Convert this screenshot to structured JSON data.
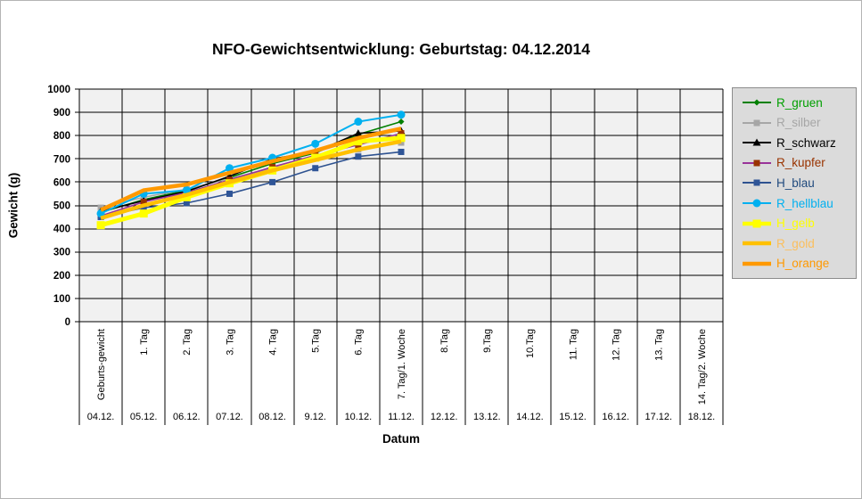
{
  "title": "NFO-Gewichtsentwicklung: Geburtstag: 04.12.2014",
  "palette": {
    "plot_background": "#f1f1f1",
    "grid_color": "#000000",
    "legend_background": "#dbdbdb",
    "legend_border": "#8c8c8c",
    "outer_border": "#b4b4b4"
  },
  "chart_data": {
    "type": "line",
    "title": "NFO-Gewichtsentwicklung: Geburtstag: 04.12.2014",
    "xlabel": "Datum",
    "ylabel": "Gewicht (g)",
    "ylim": [
      0,
      1000
    ],
    "yticks": [
      0,
      100,
      200,
      300,
      400,
      500,
      600,
      700,
      800,
      900,
      1000
    ],
    "grid": true,
    "legend_position": "right",
    "categories": [
      "Geburts-gewicht",
      "1. Tag",
      "2. Tag",
      "3. Tag",
      "4. Tag",
      "5.Tag",
      "6. Tag",
      "7. Tag/1. Woche",
      "8.Tag",
      "9.Tag",
      "10.Tag",
      "11. Tag",
      "12. Tag",
      "13. Tag",
      "14. Tag/2. Woche"
    ],
    "category_dates": [
      "04.12.",
      "05.12.",
      "06.12.",
      "07.12.",
      "08.12.",
      "9.12.",
      "10.12.",
      "11.12.",
      "12.12.",
      "13.12.",
      "14.12.",
      "15.12.",
      "16.12.",
      "17.12.",
      "18.12."
    ],
    "series": [
      {
        "name": "R_gruen",
        "color": "#008000",
        "text_color": "#00A000",
        "marker": "diamond",
        "line_width": 1.6,
        "values": [
          470,
          525,
          565,
          620,
          680,
          725,
          805,
          860
        ]
      },
      {
        "name": "R_silber",
        "color": "#A6A6A6",
        "text_color": "#A6A6A6",
        "marker": "square",
        "line_width": 1.6,
        "values": [
          490,
          535,
          570,
          615,
          660,
          705,
          740,
          770
        ]
      },
      {
        "name": "R_schwarz",
        "color": "#000000",
        "text_color": "#000000",
        "marker": "triangle",
        "line_width": 1.6,
        "values": [
          475,
          520,
          560,
          625,
          700,
          730,
          810,
          820
        ]
      },
      {
        "name": "R_kupfer",
        "color": "#993399",
        "text_color": "#993300",
        "marker": "square",
        "marker_color": "#993300",
        "line_width": 1.6,
        "values": [
          455,
          515,
          555,
          610,
          665,
          715,
          760,
          810
        ]
      },
      {
        "name": "H_blau",
        "color": "#2E5290",
        "text_color": "#1F497D",
        "marker": "square",
        "marker_color": "#2F5597",
        "line_width": 1.6,
        "values": [
          450,
          490,
          510,
          550,
          600,
          660,
          710,
          730
        ]
      },
      {
        "name": "R_hellblau",
        "color": "#00B0F0",
        "text_color": "#00B0F0",
        "marker": "circle",
        "line_width": 2.0,
        "values": [
          465,
          550,
          565,
          660,
          705,
          765,
          860,
          890
        ]
      },
      {
        "name": "H_gelb",
        "color": "#FFFF00",
        "text_color": "#FFFF00",
        "marker": "square",
        "line_width": 5.0,
        "values": [
          415,
          465,
          535,
          595,
          650,
          705,
          775,
          790
        ]
      },
      {
        "name": "R_gold",
        "color": "#FFC000",
        "text_color": "#FBBF5C",
        "marker": "none",
        "line_width": 4.5,
        "values": [
          445,
          500,
          545,
          600,
          650,
          695,
          740,
          775
        ]
      },
      {
        "name": "H_orange",
        "color": "#FF9900",
        "text_color": "#FF9900",
        "marker": "none",
        "line_width": 4.5,
        "values": [
          480,
          565,
          590,
          640,
          690,
          735,
          790,
          830
        ]
      }
    ]
  }
}
